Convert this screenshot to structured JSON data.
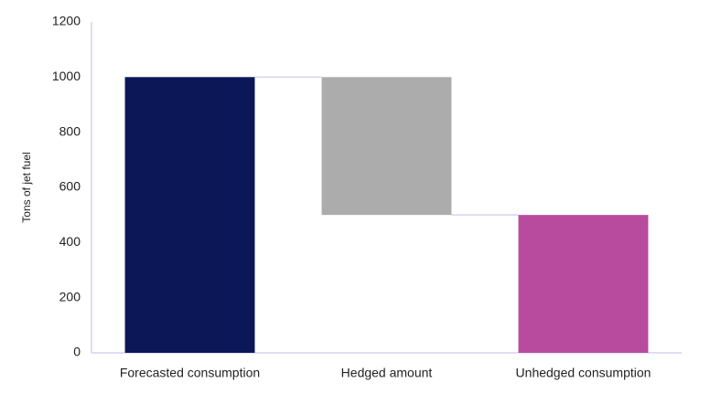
{
  "chart_data": {
    "type": "waterfall",
    "y_label": "Tons of jet fuel",
    "categories": [
      "Forecasted consumption",
      "Hedged amount",
      "Unhedged consumption"
    ],
    "values": [
      1000,
      -500,
      500
    ],
    "totals": [
      false,
      false,
      true
    ],
    "colors": [
      "#0c1757",
      "#acacac",
      "#b84b9d"
    ],
    "ylim": [
      0,
      1200
    ],
    "yticks": [
      0,
      200,
      400,
      600,
      800,
      1000,
      1200
    ],
    "grid": false
  }
}
